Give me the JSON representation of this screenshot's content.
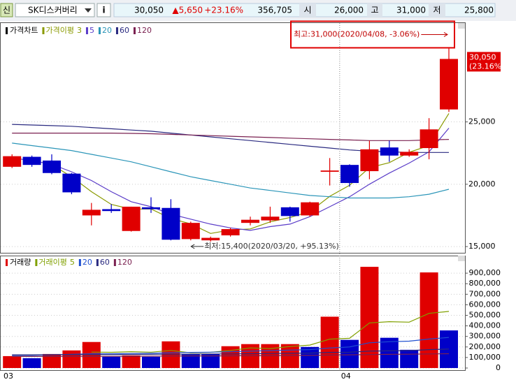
{
  "header": {
    "market_badge": "신",
    "name": "SK디스커버리",
    "info": "i",
    "price": "30,050",
    "change": "▲5,650",
    "change_pct": "+23.16%",
    "volume": "356,705",
    "open_label": "시",
    "open": "26,000",
    "high_label": "고",
    "high": "31,000",
    "low_label": "저",
    "low": "25,800"
  },
  "chart_data": [
    {
      "type": "candlestick",
      "legend_title": "가격차트",
      "ma_label": "가격이평",
      "open": [
        21400,
        22200,
        21900,
        20850,
        17500,
        18000,
        16250,
        18150,
        18100,
        15600,
        15500,
        15900,
        16900,
        17100,
        18150,
        17500,
        21000,
        21550,
        21050,
        22950,
        22300,
        22900,
        26000
      ],
      "high": [
        22400,
        22300,
        22400,
        20900,
        18500,
        18400,
        18200,
        18950,
        18800,
        17000,
        15800,
        16500,
        17400,
        18200,
        18200,
        18600,
        22100,
        21600,
        23500,
        23500,
        22800,
        25300,
        31000
      ],
      "low": [
        21300,
        21400,
        20800,
        19200,
        16700,
        17700,
        16200,
        17700,
        15500,
        15500,
        15400,
        15800,
        16700,
        16900,
        17000,
        17400,
        19900,
        19800,
        20400,
        21800,
        22200,
        22000,
        25800
      ],
      "close": [
        22250,
        21550,
        20900,
        19350,
        17950,
        17850,
        18200,
        18000,
        15550,
        16900,
        15700,
        16400,
        17150,
        17400,
        17450,
        18550,
        21100,
        20100,
        22800,
        22300,
        22600,
        24400,
        30050
      ],
      "up_color": "#e00000",
      "down_color": "#0000c8",
      "series": [
        {
          "name": "3",
          "color": "#8a9a00",
          "values": [
            null,
            null,
            21567,
            20600,
            19400,
            18383,
            18000,
            18017,
            17250,
            16817,
            16050,
            16333,
            16417,
            16983,
            17333,
            17800,
            19033,
            19917,
            21333,
            21733,
            22567,
            23100,
            25683
          ]
        },
        {
          "name": "5",
          "color": "#5a3cc8",
          "values": [
            22100,
            21900,
            21600,
            21000,
            20300,
            19400,
            18600,
            18200,
            17600,
            17200,
            16800,
            16500,
            16300,
            16600,
            16800,
            17400,
            18200,
            19000,
            20000,
            20900,
            21700,
            22600,
            24500
          ]
        },
        {
          "name": "20",
          "color": "#2a95b8",
          "values": [
            23300,
            23100,
            22900,
            22700,
            22400,
            22100,
            21800,
            21400,
            21000,
            20600,
            20300,
            20000,
            19700,
            19500,
            19300,
            19100,
            19000,
            18900,
            18900,
            18900,
            19000,
            19200,
            19600
          ]
        },
        {
          "name": "60",
          "color": "#2a2a80",
          "values": [
            24800,
            24750,
            24700,
            24650,
            24550,
            24450,
            24350,
            24250,
            24100,
            23950,
            23800,
            23650,
            23500,
            23350,
            23200,
            23050,
            22900,
            22750,
            22650,
            22600,
            22550,
            22550,
            22550
          ]
        },
        {
          "name": "120",
          "color": "#7a2050",
          "values": [
            24100,
            24100,
            24100,
            24100,
            24100,
            24100,
            24080,
            24050,
            24000,
            23950,
            23900,
            23850,
            23800,
            23750,
            23700,
            23650,
            23600,
            23550,
            23500,
            23500,
            23500,
            23550,
            23600
          ]
        }
      ],
      "ylim": [
        14500,
        32930
      ],
      "yticks": [
        {
          "value": 15000,
          "label": "15,000"
        },
        {
          "value": 20000,
          "label": "20,000"
        },
        {
          "value": 25000,
          "label": "25,000"
        }
      ],
      "last_label": "30,050",
      "last_change_label": "(23.16%)",
      "high_annotation": "최고:31,000(2020/04/08, -3.06%)",
      "low_annotation": "최저:15,400(2020/03/20, +95.13%)"
    },
    {
      "type": "bar",
      "legend_title": "거래량",
      "ma_label": "거래이평",
      "categories": [
        "03",
        null,
        null,
        null,
        null,
        null,
        null,
        null,
        null,
        null,
        null,
        null,
        null,
        null,
        null,
        null,
        null,
        "04",
        null,
        null,
        null,
        null,
        null
      ],
      "values": [
        113000,
        93000,
        133000,
        167000,
        247000,
        107000,
        120000,
        107000,
        253000,
        133000,
        133000,
        207000,
        227000,
        227000,
        227000,
        200000,
        487000,
        267000,
        960000,
        287000,
        173000,
        907000,
        356705
      ],
      "colors": [
        "#e00000",
        "#0000c8",
        "#e00000",
        "#e00000",
        "#e00000",
        "#0000c8",
        "#e00000",
        "#0000c8",
        "#e00000",
        "#0000c8",
        "#0000c8",
        "#e00000",
        "#e00000",
        "#e00000",
        "#e00000",
        "#0000c8",
        "#e00000",
        "#0000c8",
        "#e00000",
        "#0000c8",
        "#0000c8",
        "#e00000",
        "#0000c8"
      ],
      "legend_color": "#e00000",
      "series": [
        {
          "name": "5",
          "color": "#80a000",
          "values": [
            null,
            null,
            null,
            null,
            151000,
            149000,
            155000,
            150000,
            167000,
            144000,
            149000,
            167000,
            191000,
            185000,
            204000,
            218000,
            274000,
            282000,
            428000,
            440000,
            435000,
            519000,
            537000
          ]
        },
        {
          "name": "20",
          "color": "#2050d0",
          "values": [
            120000,
            120000,
            125000,
            130000,
            135000,
            135000,
            138000,
            140000,
            145000,
            148000,
            150000,
            155000,
            160000,
            165000,
            170000,
            175000,
            190000,
            200000,
            240000,
            250000,
            255000,
            275000,
            290000
          ]
        },
        {
          "name": "60",
          "color": "#2a2a80",
          "values": [
            125000,
            125000,
            126000,
            127000,
            128000,
            128000,
            129000,
            130000,
            131000,
            132000,
            133000,
            134000,
            136000,
            138000,
            140000,
            142000,
            148000,
            150000,
            160000,
            163000,
            165000,
            175000,
            180000
          ]
        },
        {
          "name": "120",
          "color": "#7a2050",
          "values": [
            110000,
            110000,
            110000,
            111000,
            112000,
            112000,
            112000,
            113000,
            114000,
            115000,
            115000,
            116000,
            117000,
            118000,
            119000,
            120000,
            123000,
            125000,
            128000,
            130000,
            131000,
            134000,
            136000
          ]
        }
      ],
      "ylim": [
        -20000,
        1060000
      ],
      "yticks": [
        {
          "value": 0,
          "label": "0"
        },
        {
          "value": 100000,
          "label": "100,000"
        },
        {
          "value": 200000,
          "label": "200,000"
        },
        {
          "value": 300000,
          "label": "300,000"
        },
        {
          "value": 400000,
          "label": "400,000"
        },
        {
          "value": 500000,
          "label": "500,000"
        },
        {
          "value": 600000,
          "label": "600,000"
        },
        {
          "value": 700000,
          "label": "700,000"
        },
        {
          "value": 800000,
          "label": "800,000"
        },
        {
          "value": 900000,
          "label": "900,000"
        }
      ]
    }
  ]
}
